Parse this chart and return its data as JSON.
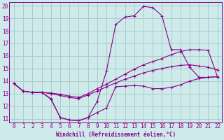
{
  "xlabel": "Windchill (Refroidissement éolien,°C)",
  "bg_color": "#ceeaea",
  "grid_color": "#aacccc",
  "line_color": "#880088",
  "xlim": [
    -0.5,
    22.5
  ],
  "ylim": [
    10.7,
    20.3
  ],
  "yticks": [
    11,
    12,
    13,
    14,
    15,
    16,
    17,
    18,
    19,
    20
  ],
  "xticks": [
    0,
    1,
    2,
    3,
    4,
    5,
    6,
    7,
    8,
    9,
    10,
    11,
    12,
    13,
    14,
    15,
    16,
    17,
    18,
    19,
    20,
    21,
    22
  ],
  "line1_x": [
    0,
    1,
    2,
    3,
    4,
    5,
    6,
    7,
    8,
    9,
    10,
    11,
    12,
    13,
    14,
    15,
    16,
    17,
    18,
    19,
    20,
    21,
    22
  ],
  "line1_y": [
    13.8,
    13.2,
    13.1,
    13.1,
    12.55,
    11.1,
    10.9,
    10.85,
    11.1,
    11.5,
    11.85,
    13.55,
    13.6,
    13.65,
    13.6,
    13.4,
    13.4,
    13.5,
    13.7,
    14.0,
    14.2,
    14.3,
    14.35
  ],
  "line2_x": [
    0,
    1,
    2,
    3,
    4,
    5,
    6,
    7,
    8,
    9,
    10,
    11,
    12,
    13,
    14,
    15,
    16,
    17,
    18,
    19,
    20,
    21,
    22
  ],
  "line2_y": [
    13.8,
    13.2,
    13.1,
    13.1,
    13.0,
    12.85,
    12.7,
    12.6,
    12.9,
    13.2,
    13.55,
    13.85,
    14.15,
    14.4,
    14.65,
    14.85,
    15.0,
    15.15,
    15.25,
    15.3,
    15.2,
    15.1,
    14.9
  ],
  "line3_x": [
    0,
    1,
    2,
    3,
    4,
    5,
    6,
    7,
    8,
    9,
    10,
    11,
    12,
    13,
    14,
    15,
    16,
    17,
    18,
    19,
    20,
    21,
    22
  ],
  "line3_y": [
    13.8,
    13.2,
    13.1,
    13.1,
    13.05,
    12.95,
    12.8,
    12.7,
    13.0,
    13.4,
    13.75,
    14.15,
    14.55,
    14.95,
    15.3,
    15.55,
    15.8,
    16.1,
    16.35,
    16.5,
    16.5,
    16.45,
    14.35
  ],
  "line4_x": [
    0,
    1,
    2,
    3,
    4,
    5,
    6,
    7,
    8,
    9,
    10,
    11,
    12,
    13,
    14,
    15,
    16,
    17,
    18,
    19,
    20,
    21,
    22
  ],
  "line4_y": [
    13.8,
    13.2,
    13.1,
    13.1,
    12.6,
    11.1,
    10.9,
    10.85,
    11.1,
    12.4,
    14.8,
    18.5,
    19.1,
    19.2,
    19.95,
    19.85,
    19.2,
    16.5,
    16.5,
    15.1,
    14.3,
    14.3,
    14.35
  ]
}
